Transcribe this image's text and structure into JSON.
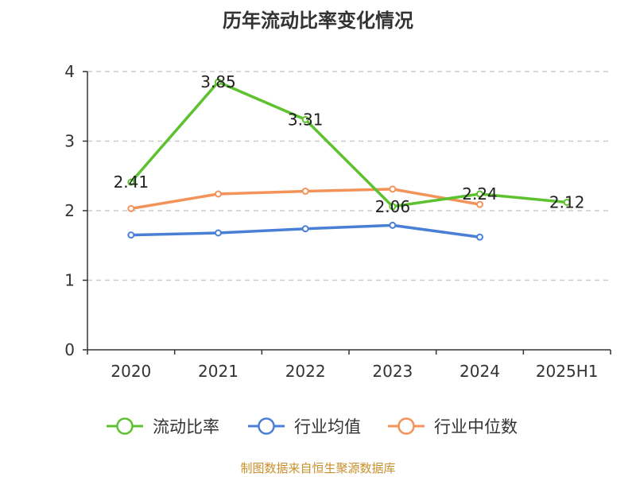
{
  "chart_data": {
    "type": "line",
    "title": "历年流动比率变化情况",
    "categories": [
      "2020",
      "2021",
      "2022",
      "2023",
      "2024",
      "2025H1"
    ],
    "y_ticks": [
      "0",
      "1",
      "2",
      "3",
      "4"
    ],
    "ylim": [
      0,
      4
    ],
    "grid": true,
    "legend_position": "bottom",
    "series": [
      {
        "name": "流动比率",
        "color": "#5ec12f",
        "values": [
          2.41,
          3.85,
          3.31,
          2.06,
          2.24,
          2.12
        ],
        "labels": [
          "2.41",
          "3.85",
          "3.31",
          "2.06",
          "2.24",
          "2.12"
        ]
      },
      {
        "name": "行业均值",
        "color": "#4a7fd6",
        "values": [
          1.65,
          1.68,
          1.74,
          1.79,
          1.62,
          null
        ]
      },
      {
        "name": "行业中位数",
        "color": "#f3935a",
        "values": [
          2.03,
          2.24,
          2.28,
          2.31,
          2.09,
          null
        ]
      }
    ]
  },
  "source": "制图数据来自恒生聚源数据库"
}
